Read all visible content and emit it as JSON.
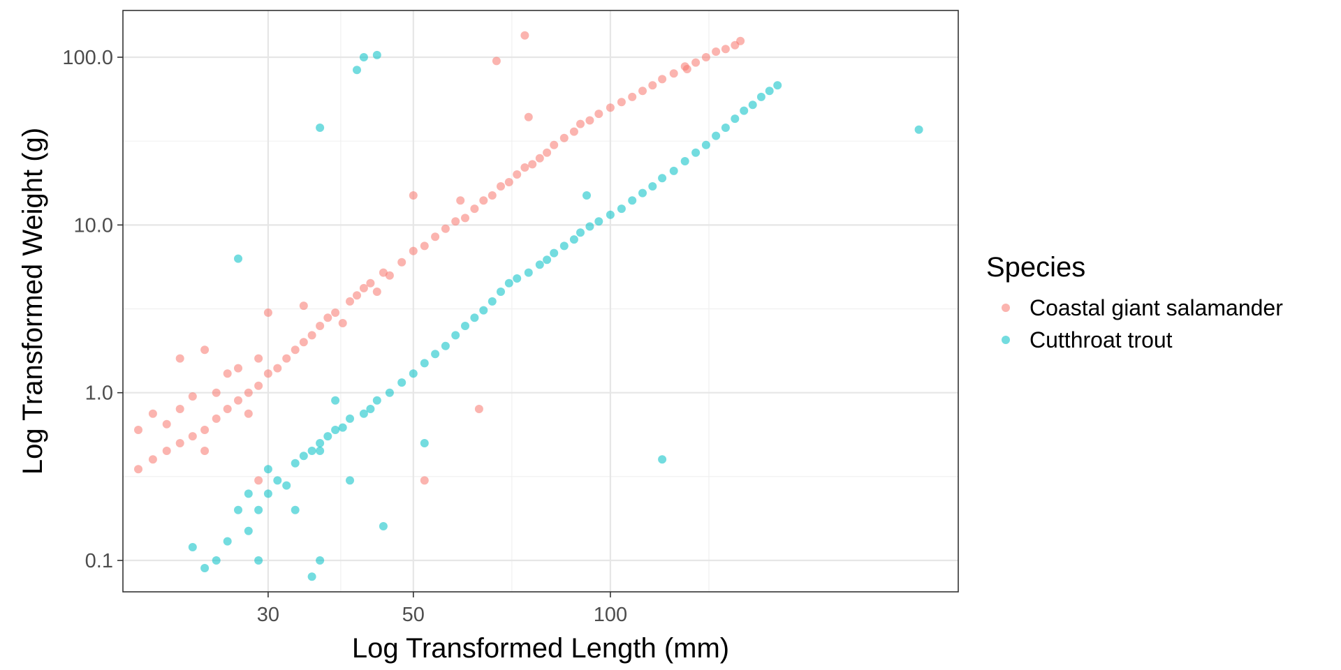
{
  "chart_data": {
    "type": "scatter",
    "title": "",
    "xlabel": "Log Transformed Length (mm)",
    "ylabel": "Log Transformed Weight (g)",
    "x_scale": "log10",
    "y_scale": "log10",
    "xlim": [
      18,
      340
    ],
    "ylim": [
      0.065,
      190
    ],
    "x_ticks": [
      30,
      50,
      100
    ],
    "x_tick_labels": [
      "30",
      "50",
      "100"
    ],
    "y_ticks": [
      0.1,
      1,
      10,
      100
    ],
    "y_tick_labels": [
      "0.1",
      "1.0",
      "10.0",
      "100.0"
    ],
    "grid": true,
    "legend": {
      "title": "Species",
      "position": "right"
    },
    "series": [
      {
        "name": "Coastal giant salamander",
        "color": "#F8766D",
        "points": [
          [
            19,
            0.6
          ],
          [
            19,
            0.35
          ],
          [
            20,
            0.4
          ],
          [
            20,
            0.75
          ],
          [
            21,
            0.45
          ],
          [
            21,
            0.65
          ],
          [
            22,
            0.5
          ],
          [
            22,
            1.6
          ],
          [
            22,
            0.8
          ],
          [
            23,
            0.55
          ],
          [
            23,
            0.95
          ],
          [
            24,
            0.6
          ],
          [
            24,
            1.8
          ],
          [
            24,
            0.45
          ],
          [
            25,
            1.0
          ],
          [
            25,
            0.7
          ],
          [
            26,
            0.8
          ],
          [
            26,
            1.3
          ],
          [
            27,
            0.9
          ],
          [
            27,
            1.4
          ],
          [
            28,
            1.0
          ],
          [
            28,
            0.75
          ],
          [
            29,
            1.1
          ],
          [
            29,
            1.6
          ],
          [
            30,
            1.3
          ],
          [
            30,
            3.0
          ],
          [
            31,
            1.4
          ],
          [
            32,
            1.6
          ],
          [
            33,
            1.8
          ],
          [
            34,
            2.0
          ],
          [
            34,
            3.3
          ],
          [
            35,
            2.2
          ],
          [
            36,
            2.5
          ],
          [
            37,
            2.8
          ],
          [
            38,
            3.0
          ],
          [
            39,
            2.6
          ],
          [
            40,
            3.5
          ],
          [
            41,
            3.8
          ],
          [
            42,
            4.2
          ],
          [
            43,
            4.5
          ],
          [
            44,
            4.0
          ],
          [
            45,
            5.2
          ],
          [
            46,
            5.0
          ],
          [
            48,
            6.0
          ],
          [
            50,
            7.0
          ],
          [
            50,
            15.0
          ],
          [
            52,
            7.5
          ],
          [
            54,
            8.5
          ],
          [
            56,
            9.5
          ],
          [
            58,
            10.5
          ],
          [
            59,
            14.0
          ],
          [
            60,
            11.0
          ],
          [
            62,
            12.5
          ],
          [
            64,
            14.0
          ],
          [
            66,
            15.0
          ],
          [
            68,
            17.0
          ],
          [
            70,
            18.0
          ],
          [
            72,
            20.0
          ],
          [
            74,
            22.0
          ],
          [
            75,
            44.0
          ],
          [
            76,
            23.0
          ],
          [
            78,
            25.0
          ],
          [
            80,
            27.0
          ],
          [
            82,
            30.0
          ],
          [
            85,
            33.0
          ],
          [
            88,
            36.0
          ],
          [
            90,
            40.0
          ],
          [
            93,
            42.0
          ],
          [
            96,
            46.0
          ],
          [
            100,
            50.0
          ],
          [
            104,
            54.0
          ],
          [
            108,
            58.0
          ],
          [
            112,
            63.0
          ],
          [
            116,
            68.0
          ],
          [
            120,
            74.0
          ],
          [
            125,
            80.0
          ],
          [
            130,
            88.0
          ],
          [
            135,
            93.0
          ],
          [
            140,
            100.0
          ],
          [
            145,
            108.0
          ],
          [
            150,
            112.0
          ],
          [
            155,
            118.0
          ],
          [
            158,
            125.0
          ],
          [
            63,
            0.8
          ],
          [
            52,
            0.3
          ],
          [
            67,
            95.0
          ],
          [
            74,
            135.0
          ],
          [
            131,
            85.0
          ],
          [
            29,
            0.3
          ]
        ]
      },
      {
        "name": "Cutthroat trout",
        "color": "#00BFC4",
        "points": [
          [
            23,
            0.12
          ],
          [
            24,
            0.09
          ],
          [
            25,
            0.1
          ],
          [
            26,
            0.13
          ],
          [
            27,
            0.2
          ],
          [
            27,
            6.3
          ],
          [
            28,
            0.25
          ],
          [
            28,
            0.15
          ],
          [
            29,
            0.2
          ],
          [
            29,
            0.1
          ],
          [
            30,
            0.25
          ],
          [
            30,
            0.35
          ],
          [
            31,
            0.3
          ],
          [
            32,
            0.28
          ],
          [
            33,
            0.38
          ],
          [
            33,
            0.2
          ],
          [
            34,
            0.42
          ],
          [
            35,
            0.45
          ],
          [
            36,
            0.5
          ],
          [
            36,
            0.1
          ],
          [
            36,
            38.0
          ],
          [
            37,
            0.55
          ],
          [
            38,
            0.6
          ],
          [
            39,
            0.62
          ],
          [
            40,
            0.7
          ],
          [
            41,
            84.0
          ],
          [
            42,
            100.0
          ],
          [
            42,
            0.75
          ],
          [
            43,
            0.8
          ],
          [
            44,
            0.9
          ],
          [
            44,
            103.0
          ],
          [
            45,
            0.16
          ],
          [
            46,
            1.0
          ],
          [
            48,
            1.15
          ],
          [
            50,
            1.3
          ],
          [
            52,
            1.5
          ],
          [
            52,
            0.5
          ],
          [
            54,
            1.7
          ],
          [
            56,
            1.9
          ],
          [
            58,
            2.2
          ],
          [
            60,
            2.5
          ],
          [
            62,
            2.8
          ],
          [
            64,
            3.1
          ],
          [
            66,
            3.5
          ],
          [
            68,
            4.0
          ],
          [
            70,
            4.5
          ],
          [
            72,
            4.8
          ],
          [
            75,
            5.2
          ],
          [
            78,
            5.8
          ],
          [
            80,
            6.2
          ],
          [
            82,
            6.8
          ],
          [
            85,
            7.5
          ],
          [
            88,
            8.2
          ],
          [
            90,
            9.0
          ],
          [
            92,
            15.0
          ],
          [
            93,
            9.8
          ],
          [
            96,
            10.5
          ],
          [
            100,
            11.5
          ],
          [
            104,
            12.5
          ],
          [
            108,
            14.0
          ],
          [
            112,
            15.5
          ],
          [
            116,
            17.0
          ],
          [
            120,
            19.0
          ],
          [
            120,
            0.4
          ],
          [
            125,
            21.0
          ],
          [
            130,
            24.0
          ],
          [
            135,
            27.0
          ],
          [
            140,
            30.0
          ],
          [
            145,
            34.0
          ],
          [
            150,
            38.0
          ],
          [
            155,
            43.0
          ],
          [
            160,
            48.0
          ],
          [
            165,
            52.0
          ],
          [
            170,
            58.0
          ],
          [
            175,
            63.0
          ],
          [
            180,
            68.0
          ],
          [
            296,
            37.0
          ],
          [
            35,
            0.08
          ],
          [
            40,
            0.3
          ],
          [
            36,
            0.45
          ],
          [
            38,
            0.9
          ]
        ]
      }
    ]
  }
}
